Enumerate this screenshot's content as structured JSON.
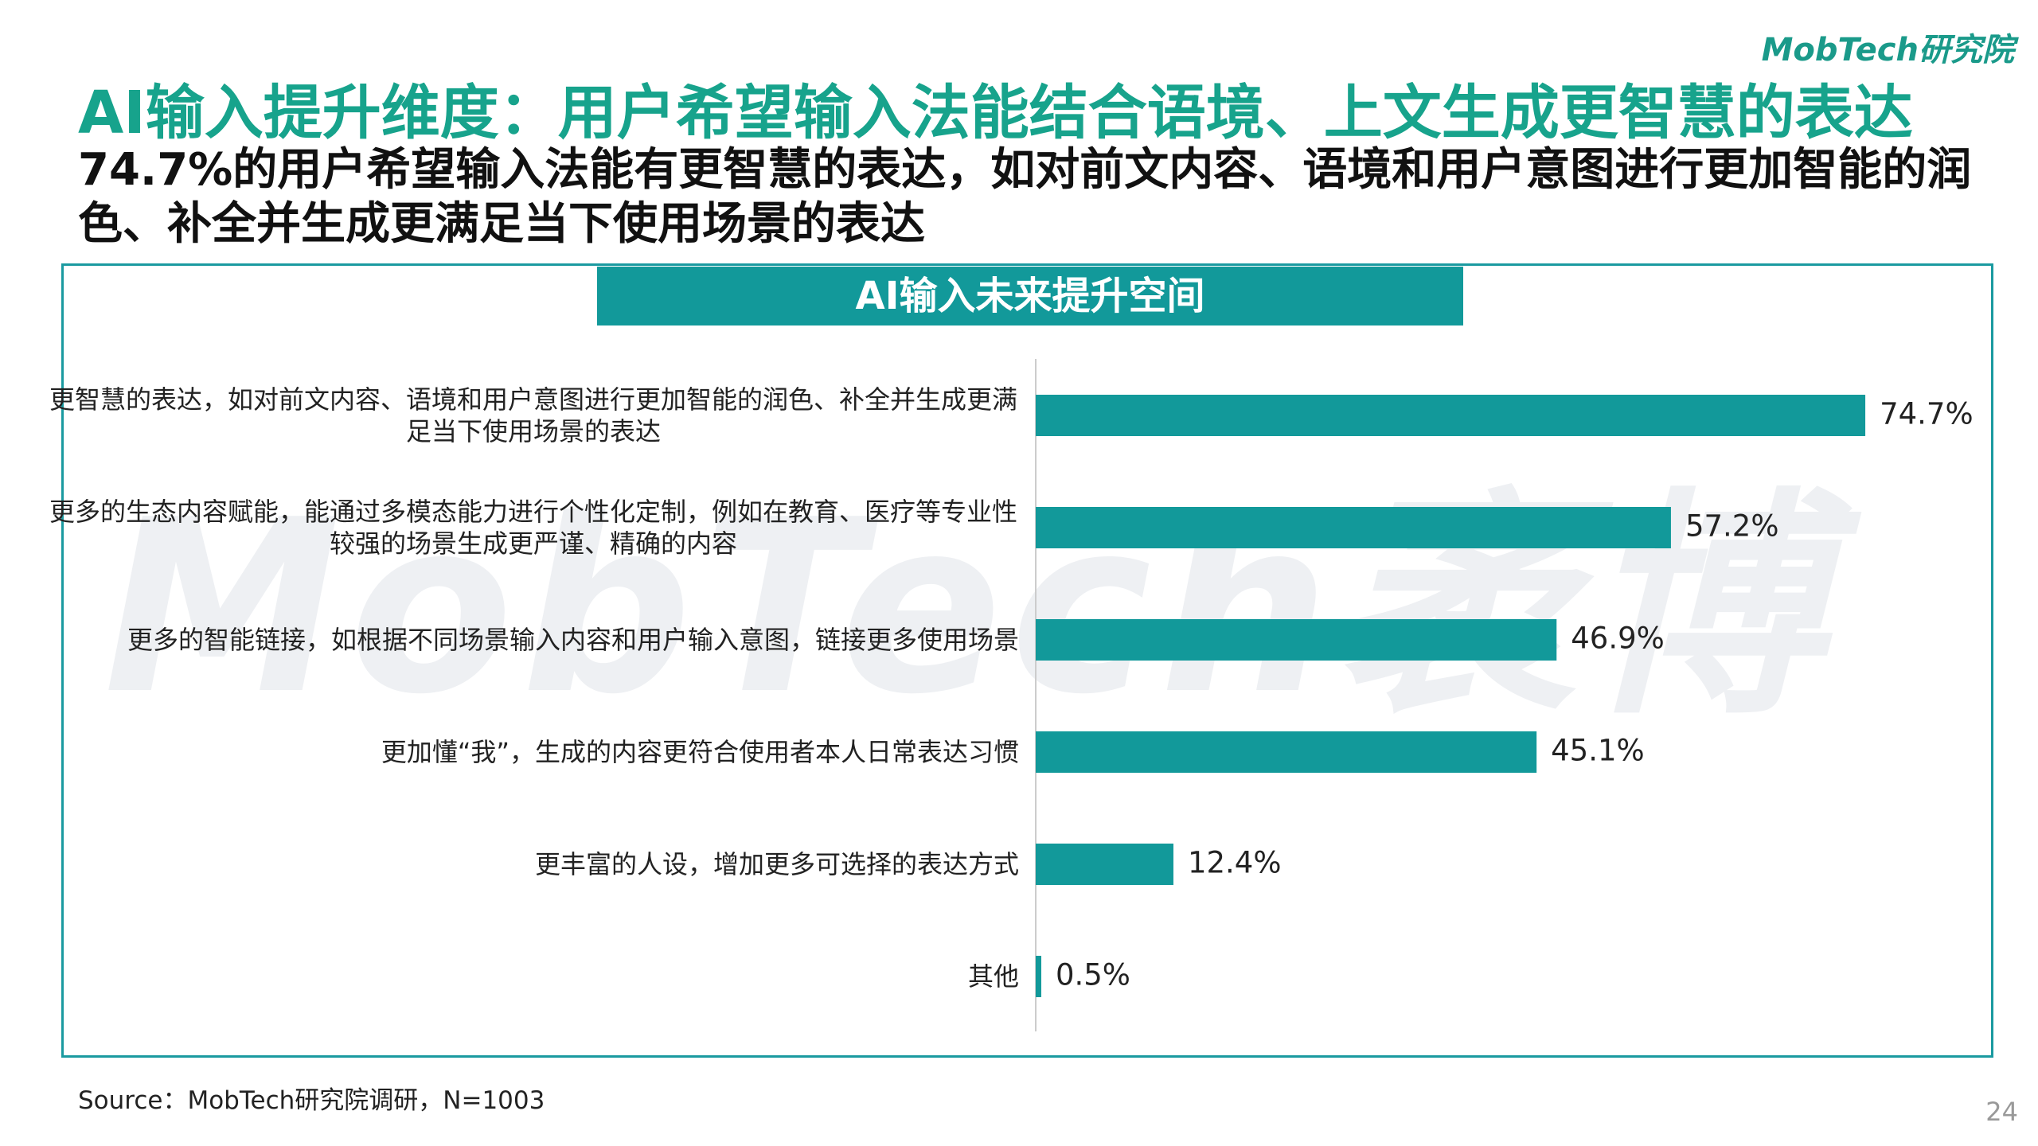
{
  "header": {
    "logo": "MobTech研究院",
    "title": "AI输入提升维度：用户希望输入法能结合语境、上文生成更智慧的表达",
    "subtitle": "74.7%的用户希望输入法能有更智慧的表达，如对前文内容、语境和用户意图进行更加智能的润色、补全并生成更满足当下使用场景的表达"
  },
  "watermark": "MobTech袤博",
  "chart_data": {
    "type": "hbar",
    "title": "AI输入未来提升空间",
    "categories": [
      "更智慧的表达，如对前文内容、语境和用户意图进行更加智能的润色、补全并生成更满足当下使用场景的表达",
      "更多的生态内容赋能，能通过多模态能力进行个性化定制，例如在教育、医疗等专业性较强的场景生成更严谨、精确的内容",
      "更多的智能链接，如根据不同场景输入内容和用户输入意图，链接更多使用场景",
      "更加懂“我”，生成的内容更符合使用者本人日常表达习惯",
      "更丰富的人设，增加更多可选择的表达方式",
      "其他"
    ],
    "values": [
      74.7,
      57.2,
      46.9,
      45.1,
      12.4,
      0.5
    ],
    "value_labels": [
      "74.7%",
      "57.2%",
      "46.9%",
      "45.1%",
      "12.4%",
      "0.5%"
    ],
    "color": "#12999a",
    "xlim": [
      0,
      100
    ]
  },
  "footer": {
    "source": "Source：MobTech研究院调研，N=1003",
    "page": "24"
  }
}
